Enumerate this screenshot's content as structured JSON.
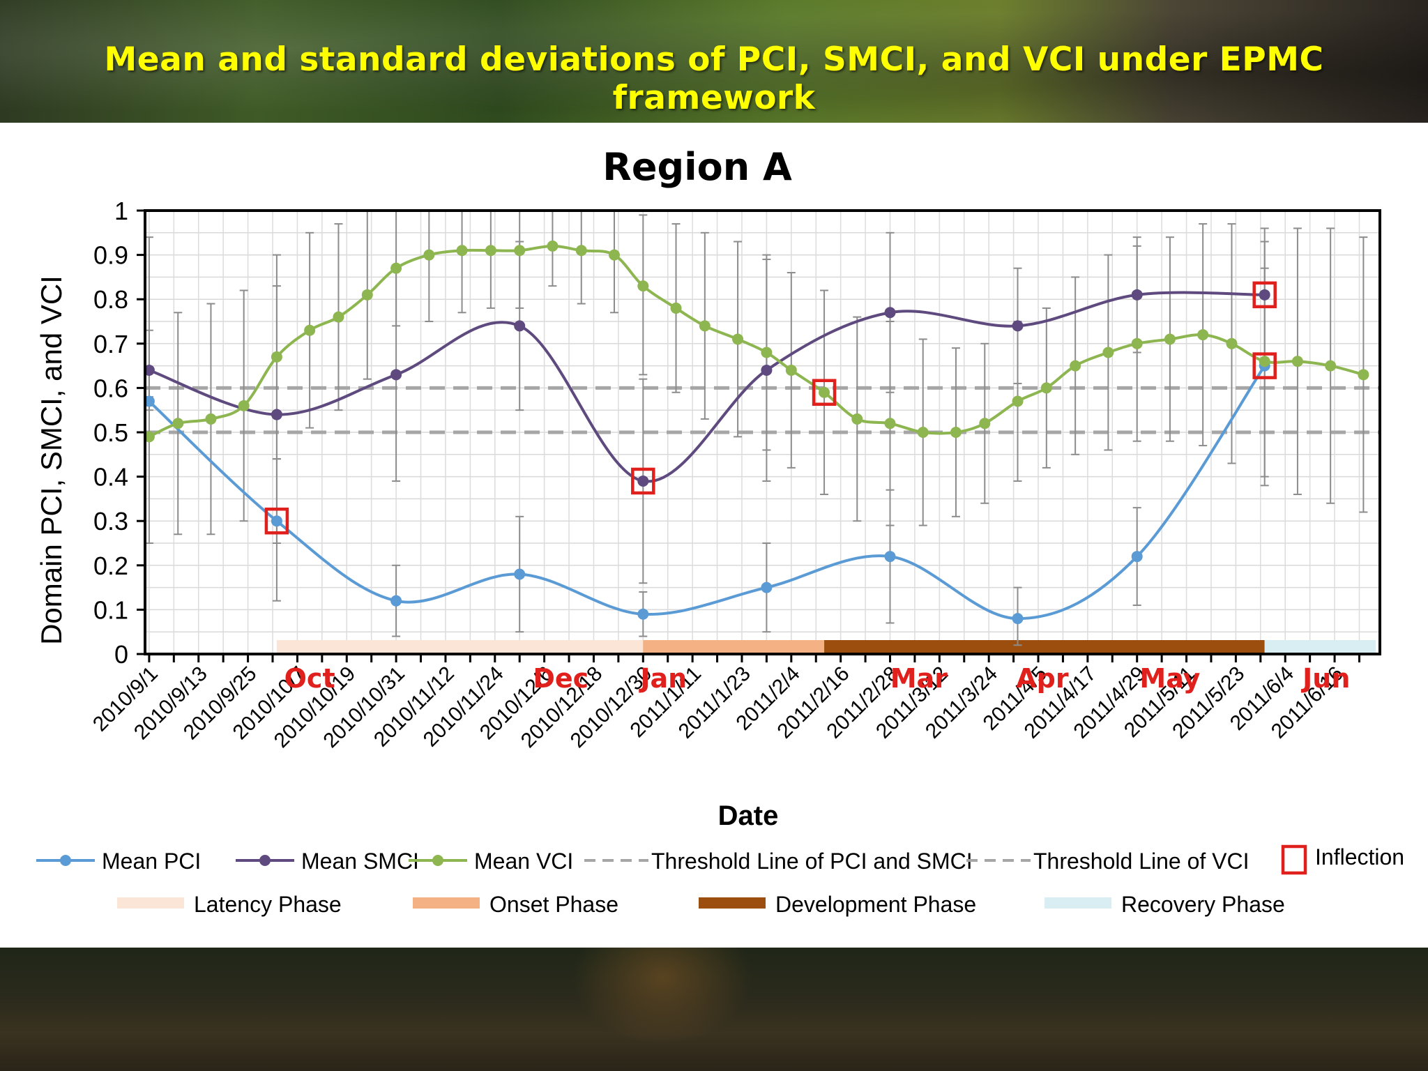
{
  "slide": {
    "title": "Mean and standard deviations of PCI, SMCI, and VCI under EPMC framework"
  },
  "colors": {
    "title_text": "#ffff00",
    "pci": "#5b9bd5",
    "smci": "#5e4a7e",
    "vci": "#8db550",
    "threshold": "#a6a6a6",
    "inflection": "#e0201d",
    "month_labels": "#e0201d",
    "latency": "#fbe5d6",
    "onset": "#f4b183",
    "development": "#9c4e0e",
    "recovery": "#d9eef3"
  },
  "chart_data": {
    "type": "line",
    "title": "Region A",
    "xlabel": "Date",
    "ylabel": "Domain PCI, SMCI, and VCI",
    "ylim": [
      0,
      1
    ],
    "yticks": [
      "0",
      "0.1",
      "0.2",
      "0.3",
      "0.4",
      "0.5",
      "0.6",
      "0.7",
      "0.8",
      "0.9",
      "1"
    ],
    "xlim": [
      "2010-08-31",
      "2011-06-27"
    ],
    "grid": true,
    "xtick_labels": [
      "2010/9/1",
      "2010/9/13",
      "2010/9/25",
      "2010/10/7",
      "2010/10/19",
      "2010/10/31",
      "2010/11/12",
      "2010/11/24",
      "2010/12/6",
      "2010/12/18",
      "2010/12/30",
      "2011/1/11",
      "2011/1/23",
      "2011/2/4",
      "2011/2/16",
      "2011/2/28",
      "2011/3/12",
      "2011/3/24",
      "2011/4/5",
      "2011/4/17",
      "2011/4/29",
      "2011/5/11",
      "2011/5/23",
      "2011/6/4",
      "2011/6/16"
    ],
    "xtick_dates": [
      "2010-09-01",
      "2010-09-13",
      "2010-09-25",
      "2010-10-07",
      "2010-10-19",
      "2010-10-31",
      "2010-11-12",
      "2010-11-24",
      "2010-12-06",
      "2010-12-18",
      "2010-12-30",
      "2011-01-11",
      "2011-01-23",
      "2011-02-04",
      "2011-02-16",
      "2011-02-28",
      "2011-03-12",
      "2011-03-24",
      "2011-04-05",
      "2011-04-17",
      "2011-04-29",
      "2011-05-11",
      "2011-05-23",
      "2011-06-04",
      "2011-06-16"
    ],
    "month_markers": [
      {
        "label": "Oct",
        "date": "2010-10-10"
      },
      {
        "label": "Dec",
        "date": "2010-12-10"
      },
      {
        "label": "Jan",
        "date": "2011-01-04"
      },
      {
        "label": "Mar",
        "date": "2011-03-07"
      },
      {
        "label": "Apr",
        "date": "2011-04-06"
      },
      {
        "label": "May",
        "date": "2011-05-07"
      },
      {
        "label": "Jun",
        "date": "2011-06-14"
      }
    ],
    "thresholds": [
      {
        "name": "Threshold Line of PCI and SMCI",
        "y": 0.6
      },
      {
        "name": "Threshold Line of VCI",
        "y": 0.5
      }
    ],
    "series": [
      {
        "name": "Mean PCI",
        "points": [
          {
            "x": "2010-09-01",
            "y": 0.57,
            "lo": 0.56,
            "hi": 0.58
          },
          {
            "x": "2010-10-02",
            "y": 0.3,
            "lo": 0.12,
            "hi": 0.44
          },
          {
            "x": "2010-10-31",
            "y": 0.12,
            "lo": 0.04,
            "hi": 0.2
          },
          {
            "x": "2010-11-30",
            "y": 0.18,
            "lo": 0.05,
            "hi": 0.31
          },
          {
            "x": "2010-12-30",
            "y": 0.09,
            "lo": 0.04,
            "hi": 0.14
          },
          {
            "x": "2011-01-29",
            "y": 0.15,
            "lo": 0.05,
            "hi": 0.25
          },
          {
            "x": "2011-02-28",
            "y": 0.22,
            "lo": 0.07,
            "hi": 0.37
          },
          {
            "x": "2011-03-31",
            "y": 0.08,
            "lo": 0.02,
            "hi": 0.15
          },
          {
            "x": "2011-04-29",
            "y": 0.22,
            "lo": 0.11,
            "hi": 0.33
          },
          {
            "x": "2011-05-30",
            "y": 0.65,
            "lo": 0.4,
            "hi": 0.87
          }
        ]
      },
      {
        "name": "Mean SMCI",
        "points": [
          {
            "x": "2010-09-01",
            "y": 0.64,
            "lo": 0.55,
            "hi": 0.73
          },
          {
            "x": "2010-10-02",
            "y": 0.54,
            "lo": 0.25,
            "hi": 0.83
          },
          {
            "x": "2010-10-31",
            "y": 0.63,
            "lo": 0.39,
            "hi": 0.87
          },
          {
            "x": "2010-11-30",
            "y": 0.74,
            "lo": 0.55,
            "hi": 0.93
          },
          {
            "x": "2010-12-30",
            "y": 0.39,
            "lo": 0.16,
            "hi": 0.62
          },
          {
            "x": "2011-01-29",
            "y": 0.64,
            "lo": 0.39,
            "hi": 0.89
          },
          {
            "x": "2011-02-28",
            "y": 0.77,
            "lo": 0.59,
            "hi": 0.95
          },
          {
            "x": "2011-03-31",
            "y": 0.74,
            "lo": 0.61,
            "hi": 0.87
          },
          {
            "x": "2011-04-29",
            "y": 0.81,
            "lo": 0.68,
            "hi": 0.94
          },
          {
            "x": "2011-05-30",
            "y": 0.81,
            "lo": 0.66,
            "hi": 0.96
          }
        ]
      },
      {
        "name": "Mean VCI",
        "points": [
          {
            "x": "2010-09-01",
            "y": 0.49,
            "lo": 0.25,
            "hi": 0.94
          },
          {
            "x": "2010-09-08",
            "y": 0.52,
            "lo": 0.27,
            "hi": 0.77
          },
          {
            "x": "2010-09-16",
            "y": 0.53,
            "lo": 0.27,
            "hi": 0.79
          },
          {
            "x": "2010-09-24",
            "y": 0.56,
            "lo": 0.3,
            "hi": 0.82
          },
          {
            "x": "2010-10-02",
            "y": 0.67,
            "lo": 0.44,
            "hi": 0.9
          },
          {
            "x": "2010-10-10",
            "y": 0.73,
            "lo": 0.51,
            "hi": 0.95
          },
          {
            "x": "2010-10-17",
            "y": 0.76,
            "lo": 0.55,
            "hi": 0.97
          },
          {
            "x": "2010-10-24",
            "y": 0.81,
            "lo": 0.62,
            "hi": 1.0
          },
          {
            "x": "2010-10-31",
            "y": 0.87,
            "lo": 0.74,
            "hi": 1.0
          },
          {
            "x": "2010-11-08",
            "y": 0.9,
            "lo": 0.75,
            "hi": 1.0
          },
          {
            "x": "2010-11-16",
            "y": 0.91,
            "lo": 0.77,
            "hi": 1.0
          },
          {
            "x": "2010-11-23",
            "y": 0.91,
            "lo": 0.78,
            "hi": 1.0
          },
          {
            "x": "2010-11-30",
            "y": 0.91,
            "lo": 0.78,
            "hi": 1.0
          },
          {
            "x": "2010-12-08",
            "y": 0.92,
            "lo": 0.83,
            "hi": 1.0
          },
          {
            "x": "2010-12-15",
            "y": 0.91,
            "lo": 0.79,
            "hi": 1.0
          },
          {
            "x": "2010-12-23",
            "y": 0.9,
            "lo": 0.77,
            "hi": 1.0
          },
          {
            "x": "2010-12-30",
            "y": 0.83,
            "lo": 0.63,
            "hi": 0.99
          },
          {
            "x": "2011-01-07",
            "y": 0.78,
            "lo": 0.59,
            "hi": 0.97
          },
          {
            "x": "2011-01-14",
            "y": 0.74,
            "lo": 0.53,
            "hi": 0.95
          },
          {
            "x": "2011-01-22",
            "y": 0.71,
            "lo": 0.49,
            "hi": 0.93
          },
          {
            "x": "2011-01-29",
            "y": 0.68,
            "lo": 0.46,
            "hi": 0.9
          },
          {
            "x": "2011-02-04",
            "y": 0.64,
            "lo": 0.42,
            "hi": 0.86
          },
          {
            "x": "2011-02-12",
            "y": 0.59,
            "lo": 0.36,
            "hi": 0.82
          },
          {
            "x": "2011-02-20",
            "y": 0.53,
            "lo": 0.3,
            "hi": 0.76
          },
          {
            "x": "2011-02-28",
            "y": 0.52,
            "lo": 0.29,
            "hi": 0.75
          },
          {
            "x": "2011-03-08",
            "y": 0.5,
            "lo": 0.29,
            "hi": 0.71
          },
          {
            "x": "2011-03-16",
            "y": 0.5,
            "lo": 0.31,
            "hi": 0.69
          },
          {
            "x": "2011-03-23",
            "y": 0.52,
            "lo": 0.34,
            "hi": 0.7
          },
          {
            "x": "2011-03-31",
            "y": 0.57,
            "lo": 0.39,
            "hi": 0.75
          },
          {
            "x": "2011-04-07",
            "y": 0.6,
            "lo": 0.42,
            "hi": 0.78
          },
          {
            "x": "2011-04-14",
            "y": 0.65,
            "lo": 0.45,
            "hi": 0.85
          },
          {
            "x": "2011-04-22",
            "y": 0.68,
            "lo": 0.46,
            "hi": 0.9
          },
          {
            "x": "2011-04-29",
            "y": 0.7,
            "lo": 0.48,
            "hi": 0.92
          },
          {
            "x": "2011-05-07",
            "y": 0.71,
            "lo": 0.48,
            "hi": 0.94
          },
          {
            "x": "2011-05-15",
            "y": 0.72,
            "lo": 0.47,
            "hi": 0.97
          },
          {
            "x": "2011-05-22",
            "y": 0.7,
            "lo": 0.43,
            "hi": 0.97
          },
          {
            "x": "2011-05-30",
            "y": 0.66,
            "lo": 0.38,
            "hi": 0.93
          },
          {
            "x": "2011-06-07",
            "y": 0.66,
            "lo": 0.36,
            "hi": 0.96
          },
          {
            "x": "2011-06-15",
            "y": 0.65,
            "lo": 0.34,
            "hi": 0.96
          },
          {
            "x": "2011-06-23",
            "y": 0.63,
            "lo": 0.32,
            "hi": 0.94
          }
        ]
      }
    ],
    "inflections": [
      {
        "x": "2010-10-02",
        "y": 0.3
      },
      {
        "x": "2010-12-30",
        "y": 0.39
      },
      {
        "x": "2011-02-12",
        "y": 0.59
      },
      {
        "x": "2011-05-30",
        "y": 0.81
      },
      {
        "x": "2011-05-30",
        "y": 0.65
      }
    ],
    "phases": [
      {
        "name": "Latency Phase",
        "start": "2010-10-02",
        "end": "2010-12-30"
      },
      {
        "name": "Onset Phase",
        "start": "2010-12-30",
        "end": "2011-02-12"
      },
      {
        "name": "Development Phase",
        "start": "2011-02-12",
        "end": "2011-05-30"
      },
      {
        "name": "Recovery Phase",
        "start": "2011-05-30",
        "end": "2011-06-26"
      }
    ],
    "legend": {
      "placement": "bottom",
      "row1": [
        "Mean PCI",
        "Mean SMCI",
        "Mean VCI",
        "Threshold Line of PCI and SMCI",
        "Threshold Line of VCI",
        "Inflection"
      ],
      "row2": [
        "Latency Phase",
        "Onset Phase",
        "Development Phase",
        "Recovery Phase"
      ]
    }
  }
}
